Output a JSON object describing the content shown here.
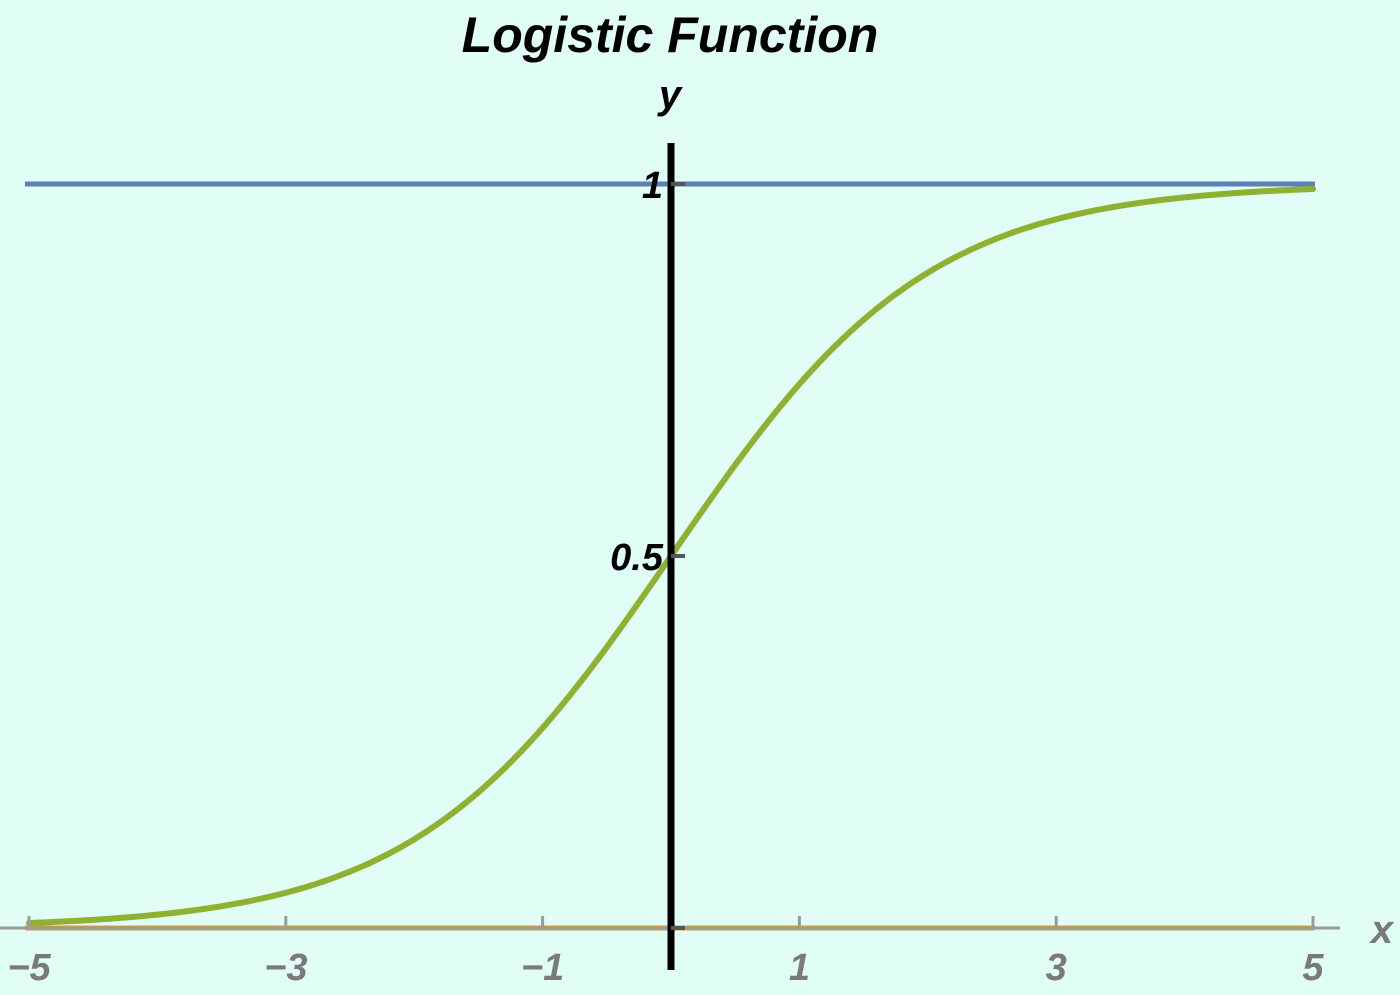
{
  "chart_data": {
    "type": "line",
    "title": "Logistic Function",
    "xlabel": "x",
    "ylabel": "y",
    "xlim": [
      -5,
      5
    ],
    "ylim": [
      0,
      1
    ],
    "x_ticks": [
      {
        "value": -5,
        "label": "−5"
      },
      {
        "value": -3,
        "label": "−3"
      },
      {
        "value": -1,
        "label": "−1"
      },
      {
        "value": 1,
        "label": "1"
      },
      {
        "value": 3,
        "label": "3"
      },
      {
        "value": 5,
        "label": "5"
      }
    ],
    "y_ticks": [
      {
        "value": 0.5,
        "label": "0.5"
      },
      {
        "value": 1,
        "label": "1"
      }
    ],
    "grid": false,
    "series": [
      {
        "function": "1/(1+exp(-x))",
        "color": "#8fb131",
        "x": [
          -5,
          -4,
          -3,
          -2,
          -1,
          0,
          1,
          2,
          3,
          4,
          5
        ],
        "y": [
          0.0067,
          0.018,
          0.047,
          0.119,
          0.269,
          0.5,
          0.731,
          0.881,
          0.953,
          0.982,
          0.9933
        ]
      },
      {
        "function": "y = 1",
        "color": "#5e81b5",
        "x": [
          -5,
          5
        ],
        "y": [
          1,
          1
        ]
      },
      {
        "function": "y = 0",
        "color": "#e19c24",
        "x": [
          -5,
          5
        ],
        "y": [
          0,
          0
        ]
      }
    ],
    "colors": {
      "background": "#e0fdf6",
      "x_axis": "#9a9a9a",
      "x_tick_label": "#7a7a7a",
      "y_axis": "#000000",
      "y_tick_label": "#000000"
    }
  }
}
